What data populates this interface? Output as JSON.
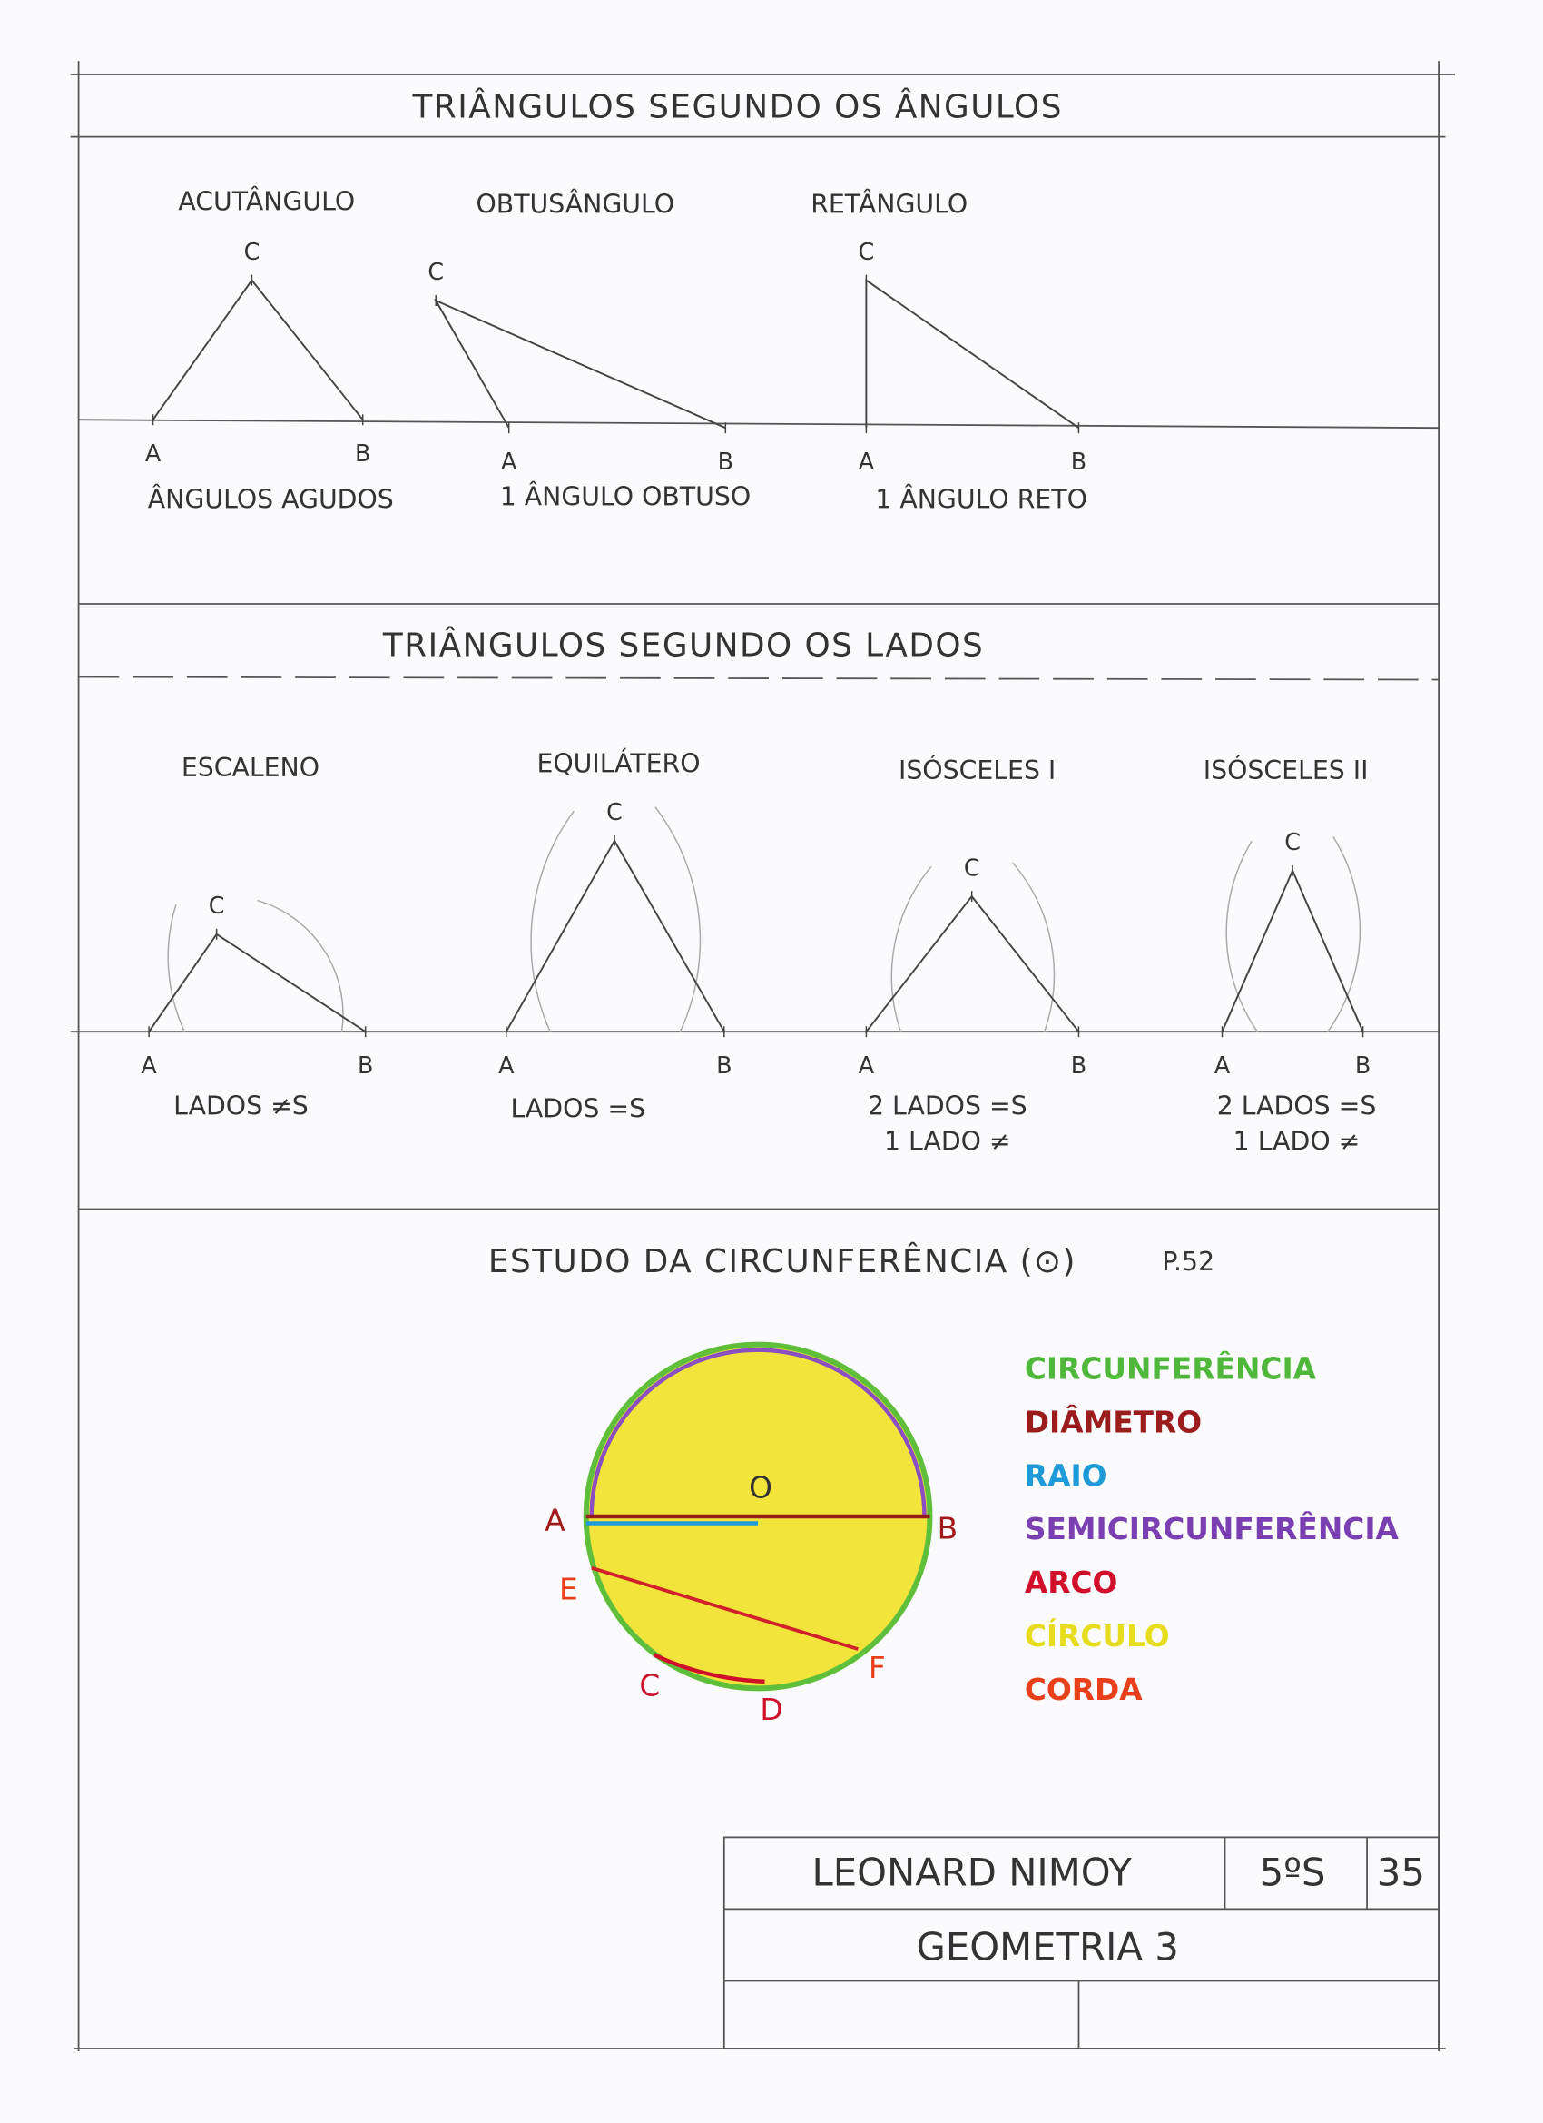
{
  "sections": [
    {
      "title": "TRIÂNGULOS SEGUNDO OS ÂNGULOS",
      "triangles": [
        {
          "name": "ACUTÂNGULO",
          "vertices": [
            "A",
            "B",
            "C"
          ],
          "description": [
            "ÂNGULOS AGUDOS"
          ]
        },
        {
          "name": "OBTUSÂNGULO",
          "vertices": [
            "A",
            "B",
            "C"
          ],
          "description": [
            "1 ÂNGULO OBTUSO"
          ]
        },
        {
          "name": "RETÂNGULO",
          "vertices": [
            "A",
            "B",
            "C"
          ],
          "description": [
            "1 ÂNGULO RETO"
          ]
        }
      ]
    },
    {
      "title": "TRIÂNGULOS SEGUNDO OS LADOS",
      "triangles": [
        {
          "name": "ESCALENO",
          "vertices": [
            "A",
            "B",
            "C"
          ],
          "description": [
            "LADOS ≠S"
          ]
        },
        {
          "name": "EQUILÁTERO",
          "vertices": [
            "A",
            "B",
            "C"
          ],
          "description": [
            "LADOS =S"
          ]
        },
        {
          "name": "ISÓSCELES I",
          "vertices": [
            "A",
            "B",
            "C"
          ],
          "description": [
            "2 LADOS =S",
            "1 LADO ≠"
          ]
        },
        {
          "name": "ISÓSCELES II",
          "vertices": [
            "A",
            "B",
            "C"
          ],
          "description": [
            "2 LADOS =S",
            "1 LADO ≠"
          ]
        }
      ]
    }
  ],
  "circle_study": {
    "title": "ESTUDO DA CIRCUNFERÊNCIA (⊙)",
    "page_ref": "P.52",
    "points": [
      "A",
      "B",
      "O",
      "E",
      "F",
      "C",
      "D"
    ],
    "legend": [
      {
        "label": "CIRCUNFERÊNCIA",
        "color": "#4fb83a"
      },
      {
        "label": "DIÂMETRO",
        "color": "#9a1c1c"
      },
      {
        "label": "RAIO",
        "color": "#1e9ad8"
      },
      {
        "label": "SEMICIRCUNFERÊNCIA",
        "color": "#7a3fb0"
      },
      {
        "label": "ARCO",
        "color": "#d0102a"
      },
      {
        "label": "CÍRCULO",
        "color": "#e8dc1e"
      },
      {
        "label": "CORDA",
        "color": "#e8401a"
      }
    ]
  },
  "title_block": {
    "student": "LEONARD NIMOY",
    "class": "5ºS",
    "number": "35",
    "subject": "GEOMETRIA 3"
  }
}
